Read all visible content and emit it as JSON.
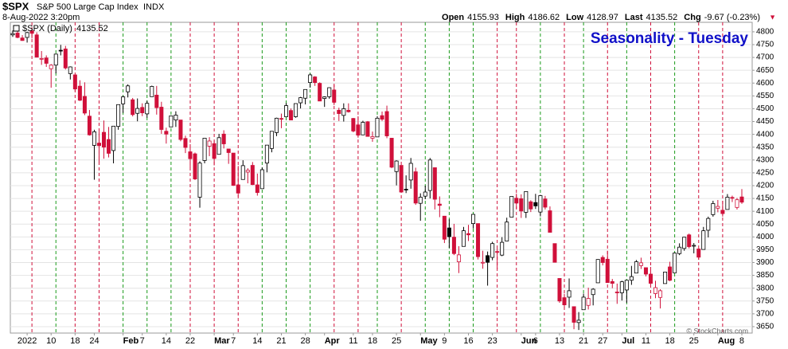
{
  "header": {
    "symbol": "$SPX",
    "name": "S&P 500 Large Cap Index",
    "exchange": "INDX",
    "date": "8-Aug-2022 3:20pm",
    "open_label": "Open",
    "open": 4155.93,
    "high_label": "High",
    "high": 4186.62,
    "low_label": "Low",
    "low": 4128.97,
    "last_label": "Last",
    "last": 4135.52,
    "chg_label": "Chg",
    "chg": "-9.67 (-0.23%)",
    "legend": "$SPX (Daily)",
    "legend_value": 4135.52,
    "copyright": "© StockCharts.com"
  },
  "chart_data": {
    "type": "candlestick",
    "title": "Seasonality - Tuesday",
    "categories": [
      null,
      null,
      null,
      "2022",
      null,
      null,
      null,
      null,
      "10",
      null,
      null,
      null,
      null,
      "18",
      null,
      null,
      null,
      "24",
      null,
      null,
      null,
      null,
      null,
      "Feb",
      null,
      null,
      null,
      "7",
      null,
      null,
      null,
      null,
      "14",
      null,
      null,
      null,
      null,
      "22",
      null,
      null,
      null,
      null,
      "Mar",
      null,
      null,
      null,
      "7",
      null,
      null,
      null,
      null,
      "14",
      null,
      null,
      null,
      null,
      "21",
      null,
      null,
      null,
      null,
      "28",
      null,
      null,
      null,
      "Apr",
      null,
      null,
      null,
      null,
      null,
      "11",
      null,
      null,
      null,
      "18",
      null,
      null,
      null,
      null,
      "25",
      null,
      null,
      null,
      null,
      "May",
      null,
      null,
      null,
      null,
      "9",
      null,
      null,
      null,
      null,
      "16",
      null,
      null,
      null,
      null,
      "23",
      null,
      null,
      null,
      null,
      null,
      "Jun",
      null,
      null,
      "6",
      null,
      null,
      null,
      null,
      "13",
      null,
      null,
      null,
      null,
      "21",
      null,
      null,
      null,
      "27",
      null,
      null,
      null,
      "Jul",
      null,
      null,
      null,
      null,
      "11",
      null,
      null,
      null,
      null,
      "18",
      null,
      null,
      null,
      null,
      "25",
      null,
      null,
      null,
      null,
      "Aug",
      null,
      null,
      null,
      null,
      "8"
    ],
    "open": [
      4788,
      4795,
      4776,
      4778,
      4804,
      4788,
      4693,
      4698,
      4656,
      4670,
      4728,
      4733,
      4637,
      4632,
      4588,
      4548,
      4471,
      4357,
      4366,
      4408,
      4380,
      4337,
      4431,
      4519,
      4566,
      4535,
      4482,
      4505,
      4480,
      4547,
      4553,
      4506,
      4412,
      4429,
      4456,
      4456,
      4384,
      4332,
      4324,
      4155,
      4298,
      4354,
      4364,
      4322,
      4401,
      4343,
      4327,
      4203,
      4224,
      4253,
      4279,
      4203,
      4188,
      4288,
      4345,
      4407,
      4462,
      4469,
      4493,
      4469,
      4523,
      4541,
      4602,
      4624,
      4599,
      4540,
      4547,
      4573,
      4494,
      4474,
      4494,
      4462,
      4437,
      4398,
      4449,
      4385,
      4390,
      4473,
      4489,
      4385,
      4255,
      4279,
      4186,
      4222,
      4254,
      4131,
      4159,
      4181,
      4270,
      4128,
      4081,
      4035,
      3999,
      3903,
      3963,
      4013,
      4052,
      4052,
      3899,
      3927,
      3920,
      3943,
      3929,
      3984,
      4077,
      4151,
      4149,
      4096,
      4137,
      4134,
      4097,
      4148,
      4102,
      3974,
      3838,
      3763,
      3765,
      3728,
      3666,
      3716,
      3733,
      3775,
      3821,
      3920,
      3913,
      3826,
      3785,
      3782,
      3793,
      3831,
      3859,
      3888,
      3880,
      3855,
      3779,
      3764,
      3818,
      3883,
      3860,
      3935,
      3955,
      4008,
      3965,
      3953,
      3951,
      4026,
      4087,
      4112,
      4104,
      4107,
      4154,
      4115,
      4155.93
    ],
    "high": [
      4805,
      4808,
      4787,
      4800,
      4818,
      4798,
      4725,
      4708,
      4674,
      4715,
      4749,
      4745,
      4665,
      4633,
      4611,
      4603,
      4495,
      4418,
      4411,
      4454,
      4429,
      4432,
      4517,
      4550,
      4595,
      4542,
      4540,
      4521,
      4531,
      4590,
      4589,
      4527,
      4426,
      4472,
      4490,
      4456,
      4395,
      4362,
      4329,
      4295,
      4385,
      4389,
      4375,
      4402,
      4416,
      4343,
      4327,
      4277,
      4299,
      4268,
      4292,
      4247,
      4271,
      4358,
      4412,
      4465,
      4481,
      4522,
      4501,
      4520,
      4546,
      4575,
      4637,
      4627,
      4603,
      4548,
      4583,
      4593,
      4504,
      4521,
      4521,
      4464,
      4471,
      4453,
      4452,
      4411,
      4471,
      4489,
      4512,
      4386,
      4299,
      4279,
      4240,
      4308,
      4270,
      4170,
      4200,
      4308,
      4270,
      4158,
      4082,
      4069,
      4051,
      3964,
      4039,
      4047,
      4089,
      4052,
      3946,
      3943,
      3981,
      3955,
      3999,
      4075,
      4158,
      4169,
      4166,
      4177,
      4143,
      4168,
      4164,
      4160,
      4119,
      3974,
      3839,
      3778,
      3838,
      3728,
      3707,
      3779,
      3802,
      3800,
      3913,
      3928,
      3946,
      3836,
      3818,
      3829,
      3832,
      3887,
      3910,
      3919,
      3880,
      3883,
      3829,
      3796,
      3863,
      3903,
      3939,
      3975,
      4000,
      4013,
      3976,
      3953,
      4039,
      4079,
      4141,
      4144,
      4141,
      4167,
      4161,
      4152,
      4186.62
    ],
    "low": [
      4780,
      4775,
      4765,
      4758,
      4774,
      4700,
      4671,
      4663,
      4582,
      4638,
      4708,
      4653,
      4614,
      4568,
      4530,
      4475,
      4395,
      4223,
      4288,
      4305,
      4310,
      4287,
      4418,
      4484,
      4544,
      4470,
      4451,
      4471,
      4465,
      4547,
      4477,
      4402,
      4364,
      4429,
      4429,
      4373,
      4327,
      4268,
      4222,
      4114,
      4287,
      4315,
      4279,
      4322,
      4345,
      4285,
      4199,
      4157,
      4224,
      4209,
      4202,
      4161,
      4188,
      4252,
      4330,
      4393,
      4424,
      4469,
      4455,
      4465,
      4501,
      4517,
      4582,
      4589,
      4530,
      4507,
      4539,
      4514,
      4452,
      4450,
      4485,
      4408,
      4387,
      4397,
      4392,
      4371,
      4390,
      4452,
      4385,
      4268,
      4201,
      4175,
      4171,
      4188,
      4125,
      4063,
      4147,
      4150,
      4107,
      4077,
      3976,
      3957,
      3929,
      3859,
      3963,
      3984,
      4033,
      3912,
      3876,
      3810,
      3909,
      3875,
      3925,
      3984,
      4077,
      4110,
      4074,
      4074,
      4097,
      4109,
      4080,
      4107,
      4018,
      3900,
      3743,
      3722,
      3723,
      3640,
      3637,
      3716,
      3717,
      3733,
      3821,
      3889,
      3821,
      3800,
      3739,
      3752,
      3743,
      3813,
      3859,
      3875,
      3846,
      3812,
      3761,
      3721,
      3818,
      3827,
      3860,
      3929,
      3946,
      3955,
      3936,
      3911,
      3951,
      3998,
      4079,
      4096,
      4079,
      4107,
      4136,
      4107,
      4128.97
    ],
    "close": [
      4793,
      4778,
      4766,
      4797,
      4794,
      4701,
      4696,
      4677,
      4670,
      4713,
      4726,
      4659,
      4663,
      4577,
      4533,
      4483,
      4398,
      4410,
      4356,
      4350,
      4326,
      4432,
      4516,
      4546,
      4589,
      4477,
      4501,
      4484,
      4521,
      4587,
      4504,
      4419,
      4401,
      4472,
      4475,
      4380,
      4349,
      4305,
      4226,
      4288,
      4385,
      4374,
      4306,
      4387,
      4363,
      4329,
      4201,
      4171,
      4278,
      4260,
      4204,
      4173,
      4262,
      4358,
      4412,
      4463,
      4461,
      4512,
      4456,
      4520,
      4543,
      4575,
      4632,
      4602,
      4530,
      4546,
      4582,
      4525,
      4481,
      4500,
      4488,
      4413,
      4397,
      4447,
      4392,
      4391,
      4463,
      4459,
      4394,
      4272,
      4296,
      4175,
      4183,
      4287,
      4132,
      4155,
      4175,
      4300,
      4147,
      4123,
      3991,
      4001,
      3935,
      3930,
      4024,
      4008,
      4088,
      3923,
      3901,
      3901,
      3974,
      3941,
      3979,
      4058,
      4158,
      4132,
      4101,
      4177,
      4109,
      4121,
      4161,
      4116,
      4018,
      3901,
      3750,
      3735,
      3790,
      3667,
      3675,
      3765,
      3760,
      3796,
      3912,
      3900,
      3822,
      3819,
      3785,
      3825,
      3831,
      3845,
      3903,
      3899,
      3855,
      3819,
      3802,
      3790,
      3863,
      3831,
      3937,
      3960,
      3999,
      3962,
      3967,
      3921,
      4024,
      4072,
      4130,
      4119,
      4091,
      4155,
      4152,
      4145,
      4135.52
    ],
    "tuesday_sessions": [
      4,
      9,
      13,
      18,
      23,
      28,
      33,
      37,
      42,
      47,
      52,
      57,
      62,
      67,
      72,
      76,
      81,
      86,
      91,
      96,
      101,
      105,
      110,
      115,
      119,
      124,
      128,
      133,
      138,
      143,
      148
    ],
    "up_color": "#000000",
    "down_color": "#d0103a",
    "tuesday_up_color": "#1a9a1a",
    "tuesday_down_color": "#d0103a",
    "title_color": "#1010c8",
    "ylim": [
      3625,
      4837
    ],
    "yticks": [
      3650,
      3700,
      3750,
      3800,
      3850,
      3900,
      3950,
      4000,
      4050,
      4100,
      4150,
      4200,
      4250,
      4300,
      4350,
      4400,
      4450,
      4500,
      4550,
      4600,
      4650,
      4700,
      4750,
      4800
    ],
    "grid": true
  }
}
